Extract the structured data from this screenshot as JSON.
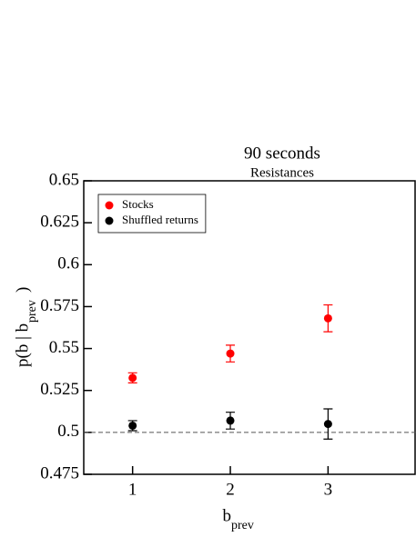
{
  "chart_data": {
    "type": "scatter",
    "title": "90 seconds",
    "subtitle": "Resistances",
    "xlabel": "b",
    "xlabel_sub": "prev",
    "ylabel": "p(b | b",
    "ylabel_sub": "prev",
    "ylabel_end": ")",
    "x": [
      1,
      2,
      3
    ],
    "series": [
      {
        "name": "Stocks",
        "color": "#ff0000",
        "values": [
          0.5325,
          0.547,
          0.568
        ],
        "errors": [
          0.003,
          0.005,
          0.008
        ]
      },
      {
        "name": "Shuffled returns",
        "color": "#000000",
        "values": [
          0.504,
          0.507,
          0.505
        ],
        "errors": [
          0.003,
          0.005,
          0.009
        ]
      }
    ],
    "reference_line": 0.5,
    "xlim": [
      0.5,
      3.9
    ],
    "xticks": [
      1,
      2,
      3
    ],
    "ylim": [
      0.475,
      0.65
    ],
    "yticks": [
      0.475,
      0.5,
      0.525,
      0.55,
      0.575,
      0.6,
      0.625,
      0.65
    ],
    "legend": "upper-left"
  }
}
